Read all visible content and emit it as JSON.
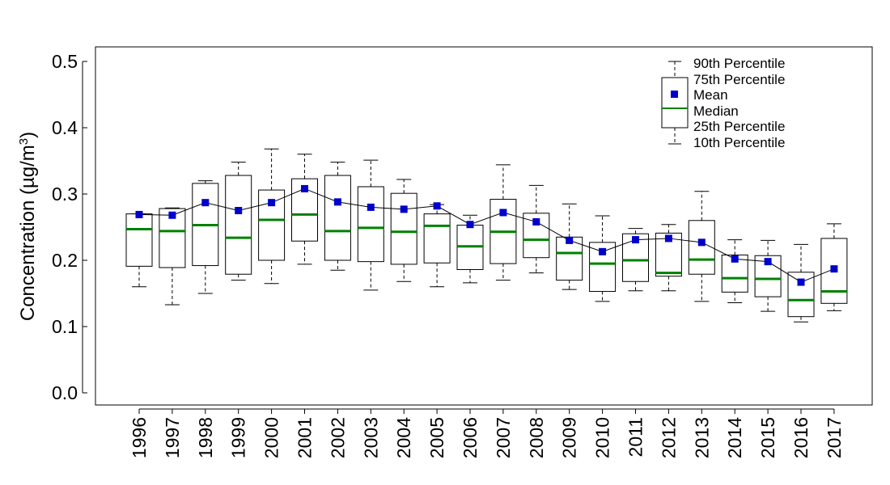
{
  "chart_data": {
    "type": "boxplot",
    "title": "",
    "xlabel": "",
    "ylabel": "Concentration (µg/m",
    "ylabel_superscript": "3",
    "ylabel_close": ")",
    "ylim": [
      0.0,
      0.5
    ],
    "yticks": [
      "0.0",
      "0.1",
      "0.2",
      "0.3",
      "0.4",
      "0.5"
    ],
    "ytick_values": [
      0.0,
      0.1,
      0.2,
      0.3,
      0.4,
      0.5
    ],
    "categories": [
      "1996",
      "1997",
      "1998",
      "1999",
      "2000",
      "2001",
      "2002",
      "2003",
      "2004",
      "2005",
      "2006",
      "2007",
      "2008",
      "2009",
      "2010",
      "2011",
      "2012",
      "2013",
      "2014",
      "2015",
      "2016",
      "2017"
    ],
    "series": [
      {
        "name": "10th Percentile",
        "values": [
          0.16,
          0.133,
          0.15,
          0.17,
          0.165,
          0.194,
          0.185,
          0.155,
          0.168,
          0.16,
          0.166,
          0.17,
          0.181,
          0.156,
          0.138,
          0.154,
          0.154,
          0.138,
          0.136,
          0.123,
          0.107,
          0.124
        ]
      },
      {
        "name": "25th Percentile",
        "values": [
          0.191,
          0.189,
          0.192,
          0.179,
          0.2,
          0.229,
          0.2,
          0.198,
          0.194,
          0.196,
          0.186,
          0.195,
          0.204,
          0.17,
          0.153,
          0.168,
          0.176,
          0.179,
          0.152,
          0.145,
          0.115,
          0.135
        ]
      },
      {
        "name": "Median",
        "values": [
          0.247,
          0.244,
          0.253,
          0.234,
          0.261,
          0.269,
          0.244,
          0.249,
          0.243,
          0.252,
          0.221,
          0.243,
          0.231,
          0.211,
          0.195,
          0.2,
          0.181,
          0.201,
          0.173,
          0.172,
          0.14,
          0.153
        ]
      },
      {
        "name": "75th Percentile",
        "values": [
          0.27,
          0.278,
          0.316,
          0.328,
          0.306,
          0.323,
          0.328,
          0.311,
          0.301,
          0.27,
          0.253,
          0.292,
          0.271,
          0.235,
          0.227,
          0.24,
          0.241,
          0.26,
          0.208,
          0.207,
          0.182,
          0.233
        ]
      },
      {
        "name": "90th Percentile",
        "values": [
          0.27,
          0.279,
          0.32,
          0.348,
          0.368,
          0.36,
          0.348,
          0.351,
          0.322,
          0.284,
          0.268,
          0.344,
          0.313,
          0.285,
          0.267,
          0.248,
          0.254,
          0.304,
          0.231,
          0.23,
          0.224,
          0.255
        ]
      },
      {
        "name": "Mean",
        "values": [
          0.269,
          0.268,
          0.287,
          0.275,
          0.287,
          0.308,
          0.288,
          0.28,
          0.277,
          0.282,
          0.254,
          0.272,
          0.258,
          0.23,
          0.213,
          0.231,
          0.233,
          0.227,
          0.202,
          0.198,
          0.167,
          0.187
        ]
      }
    ],
    "legend": {
      "placement": "top-right",
      "entries": [
        "90th Percentile",
        "75th Percentile",
        "Mean",
        "Median",
        "25th Percentile",
        "10th Percentile"
      ]
    },
    "colors": {
      "median": "#008000",
      "mean": "#0000cc",
      "box": "#000000",
      "line": "#000000"
    },
    "grid": false
  }
}
